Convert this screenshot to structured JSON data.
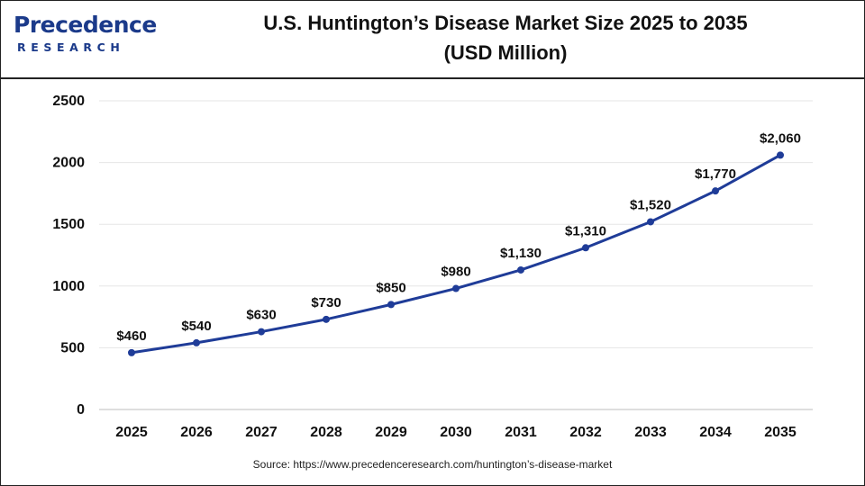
{
  "header": {
    "logo_word": "recedence",
    "logo_initial": "P",
    "logo_sub": "RESEARCH",
    "title_line1": "U.S. Huntington’s Disease Market Size 2025 to 2035",
    "title_line2": "(USD Million)"
  },
  "source": "Source: https://www.precedenceresearch.com/huntington’s-disease-market",
  "colors": {
    "line": "#1f3c98",
    "brand": "#1b3a8a",
    "grid": "#e6e6e6"
  },
  "chart_data": {
    "type": "line",
    "title": "U.S. Huntington’s Disease Market Size 2025 to 2035 (USD Million)",
    "xlabel": "",
    "ylabel": "",
    "categories": [
      "2025",
      "2026",
      "2027",
      "2028",
      "2029",
      "2030",
      "2031",
      "2032",
      "2033",
      "2034",
      "2035"
    ],
    "series": [
      {
        "values": [
          460,
          540,
          630,
          730,
          850,
          980,
          1130,
          1310,
          1520,
          1770,
          2060
        ]
      }
    ],
    "data_labels": [
      "$460",
      "$540",
      "$630",
      "$730",
      "$850",
      "$980",
      "$1,130",
      "$1,310",
      "$1,520",
      "$1,770",
      "$2,060"
    ],
    "ylim": [
      0,
      2500
    ],
    "yticks": [
      0,
      500,
      1000,
      1500,
      2000,
      2500
    ],
    "grid": true,
    "legend": "none"
  }
}
